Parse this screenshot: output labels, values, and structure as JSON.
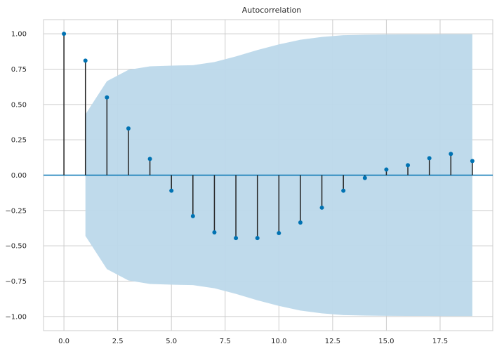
{
  "chart_data": {
    "type": "stem",
    "title": "Autocorrelation",
    "xlabel": "",
    "ylabel": "",
    "xlim": [
      -0.95,
      19.95
    ],
    "ylim": [
      -1.1,
      1.1
    ],
    "x_ticks": [
      0.0,
      2.5,
      5.0,
      7.5,
      10.0,
      12.5,
      15.0,
      17.5
    ],
    "x_tick_labels": [
      "0.0",
      "2.5",
      "5.0",
      "7.5",
      "10.0",
      "12.5",
      "15.0",
      "17.5"
    ],
    "y_ticks": [
      1.0,
      0.75,
      0.5,
      0.25,
      0.0,
      -0.25,
      -0.5,
      -0.75,
      -1.0
    ],
    "y_tick_labels": [
      "1.00",
      "0.75",
      "0.50",
      "0.25",
      "0.00",
      "−0.25",
      "−0.50",
      "−0.75",
      "−1.00"
    ],
    "grid": true,
    "lags": [
      0,
      1,
      2,
      3,
      4,
      5,
      6,
      7,
      8,
      9,
      10,
      11,
      12,
      13,
      14,
      15,
      16,
      17,
      18,
      19
    ],
    "values": [
      1.0,
      0.81,
      0.55,
      0.33,
      0.115,
      -0.11,
      -0.29,
      -0.405,
      -0.445,
      -0.445,
      -0.41,
      -0.335,
      -0.23,
      -0.11,
      -0.02,
      0.04,
      0.07,
      0.12,
      0.15,
      0.1
    ],
    "confidence_band": {
      "lags": [
        1,
        2,
        3,
        4,
        5,
        6,
        7,
        8,
        9,
        10,
        11,
        12,
        13,
        14,
        15,
        16,
        17,
        18,
        19
      ],
      "upper": [
        0.43,
        0.665,
        0.745,
        0.77,
        0.775,
        0.778,
        0.8,
        0.84,
        0.885,
        0.925,
        0.958,
        0.978,
        0.99,
        0.993,
        0.995,
        0.996,
        0.996,
        0.997,
        0.997
      ],
      "lower": [
        -0.43,
        -0.665,
        -0.745,
        -0.77,
        -0.775,
        -0.778,
        -0.8,
        -0.84,
        -0.885,
        -0.925,
        -0.958,
        -0.978,
        -0.99,
        -0.993,
        -0.995,
        -0.996,
        -0.996,
        -0.997,
        -0.997
      ]
    },
    "colors": {
      "background": "#ffffff",
      "grid": "#cccccc",
      "stem": "#222222",
      "marker": "#0072b2",
      "zero_line": "#0072b2",
      "band": "#bcd8ea",
      "text": "#262626"
    }
  }
}
